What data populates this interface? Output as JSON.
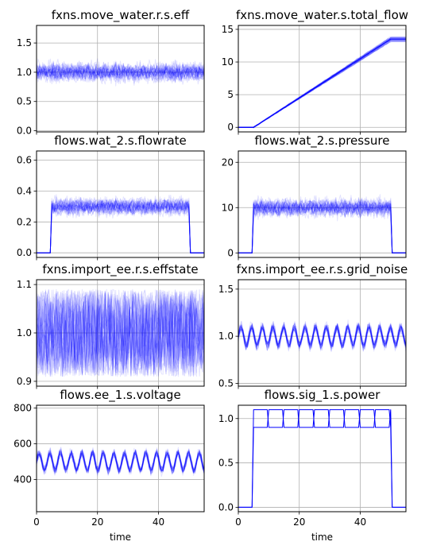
{
  "chart_data": [
    {
      "type": "line",
      "title": "fxns.move_water.r.s.eff",
      "xlabel": "",
      "xlim": [
        0,
        55
      ],
      "ylim": [
        -0.02,
        1.8
      ],
      "xticks": [],
      "yticks": [
        0.0,
        0.5,
        1.0,
        1.5
      ],
      "ytick_labels": [
        "0.0",
        "0.5",
        "1.0",
        "1.5"
      ],
      "pattern": "noise",
      "runs": 30,
      "center": 1.0,
      "spread": 0.28,
      "grid": true
    },
    {
      "type": "line",
      "title": "fxns.move_water.s.total_flow",
      "xlabel": "",
      "xlim": [
        0,
        55
      ],
      "ylim": [
        -0.7,
        15.6
      ],
      "xticks": [],
      "yticks": [
        0,
        5,
        10,
        15
      ],
      "ytick_labels": [
        "0",
        "5",
        "10",
        "15"
      ],
      "pattern": "ramp",
      "runs": 30,
      "start_x": 5,
      "end_x": 50,
      "end_value": 13.5,
      "end_spread": 1.0,
      "grid": true
    },
    {
      "type": "line",
      "title": "flows.wat_2.s.flowrate",
      "xlabel": "",
      "xlim": [
        0,
        55
      ],
      "ylim": [
        -0.03,
        0.66
      ],
      "xticks": [],
      "yticks": [
        0.0,
        0.2,
        0.4,
        0.6
      ],
      "ytick_labels": [
        "0.0",
        "0.2",
        "0.4",
        "0.6"
      ],
      "pattern": "pulse_noise",
      "runs": 30,
      "start_x": 5,
      "end_x": 50,
      "center": 0.3,
      "spread": 0.09,
      "grid": true
    },
    {
      "type": "line",
      "title": "flows.wat_2.s.pressure",
      "xlabel": "",
      "xlim": [
        0,
        55
      ],
      "ylim": [
        -1,
        22.5
      ],
      "xticks": [],
      "yticks": [
        0,
        10,
        20
      ],
      "ytick_labels": [
        "0",
        "10",
        "20"
      ],
      "pattern": "pulse_noise",
      "runs": 30,
      "start_x": 5,
      "end_x": 50,
      "center": 10,
      "spread": 3.2,
      "grid": true
    },
    {
      "type": "line",
      "title": "fxns.import_ee.r.s.effstate",
      "xlabel": "",
      "xlim": [
        0,
        55
      ],
      "ylim": [
        0.89,
        1.11
      ],
      "xticks": [],
      "yticks": [
        0.9,
        1.0,
        1.1
      ],
      "ytick_labels": [
        "0.9",
        "1.0",
        "1.1"
      ],
      "pattern": "uniform",
      "runs": 30,
      "center": 1.0,
      "spread": 0.09,
      "grid": true
    },
    {
      "type": "line",
      "title": "fxns.import_ee.r.s.grid_noise",
      "xlabel": "",
      "xlim": [
        0,
        55
      ],
      "ylim": [
        0.47,
        1.6
      ],
      "xticks": [],
      "yticks": [
        0.5,
        1.0,
        1.5
      ],
      "ytick_labels": [
        "0.5",
        "1.0",
        "1.5"
      ],
      "pattern": "periodic",
      "runs": 30,
      "center": 1.0,
      "amplitude": 0.1,
      "spread": 0.12,
      "period": 3.5,
      "grid": true
    },
    {
      "type": "line",
      "title": "flows.ee_1.s.voltage",
      "xlabel": "time",
      "xlim": [
        0,
        55
      ],
      "ylim": [
        220,
        815
      ],
      "xticks": [
        0,
        20,
        40
      ],
      "xtick_labels": [
        "0",
        "20",
        "40"
      ],
      "yticks": [
        400,
        600,
        800
      ],
      "ytick_labels": [
        "400",
        "600",
        "800"
      ],
      "pattern": "periodic",
      "runs": 30,
      "center": 500,
      "amplitude": 50,
      "spread": 55,
      "period": 3.5,
      "grid": true
    },
    {
      "type": "line",
      "title": "flows.sig_1.s.power",
      "xlabel": "time",
      "xlim": [
        0,
        55
      ],
      "ylim": [
        -0.05,
        1.15
      ],
      "xticks": [
        0,
        20,
        40
      ],
      "xtick_labels": [
        "0",
        "20",
        "40"
      ],
      "yticks": [
        0.0,
        0.5,
        1.0
      ],
      "ytick_labels": [
        "0.0",
        "0.5",
        "1.0"
      ],
      "pattern": "square",
      "runs": 2,
      "start_x": 5,
      "end_x": 50,
      "high": 1.1,
      "low": 0.9,
      "period": 5,
      "grid": true
    }
  ],
  "colors": {
    "series": "#0000ff",
    "grid": "#b0b0b0",
    "axes": "#000000"
  }
}
